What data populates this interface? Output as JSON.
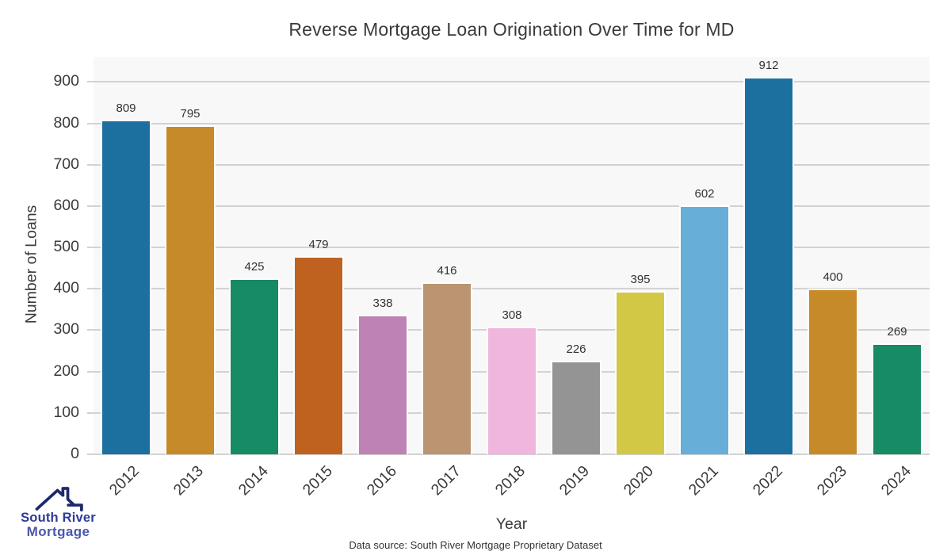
{
  "footer": "Data source: South River Mortgage Proprietary Dataset",
  "logo": {
    "line1": "South River",
    "line2": "Mortgage",
    "roof_color": "#1e296b"
  },
  "chart_data": {
    "type": "bar",
    "title": "Reverse Mortgage Loan Origination Over Time for MD",
    "xlabel": "Year",
    "ylabel": "Number of Loans",
    "categories": [
      "2012",
      "2013",
      "2014",
      "2015",
      "2016",
      "2017",
      "2018",
      "2019",
      "2020",
      "2021",
      "2022",
      "2023",
      "2024"
    ],
    "values": [
      809,
      795,
      425,
      479,
      338,
      416,
      308,
      226,
      395,
      602,
      912,
      400,
      269
    ],
    "bar_colors": [
      "#1b70a0",
      "#c78a28",
      "#178a66",
      "#bf6220",
      "#bf82b5",
      "#bb9471",
      "#f0b6de",
      "#949494",
      "#d3c846",
      "#67afd8",
      "#1b70a0",
      "#c78a28",
      "#178a66"
    ],
    "ylim": [
      0,
      960
    ],
    "yticks": [
      0,
      100,
      200,
      300,
      400,
      500,
      600,
      700,
      800,
      900
    ],
    "grid": true,
    "legend": "none",
    "plot_bg": "#f8f8f8",
    "grid_color": "#d2d2d2",
    "value_label_color": "#333333",
    "tick_label_color": "#3a3a3a"
  }
}
